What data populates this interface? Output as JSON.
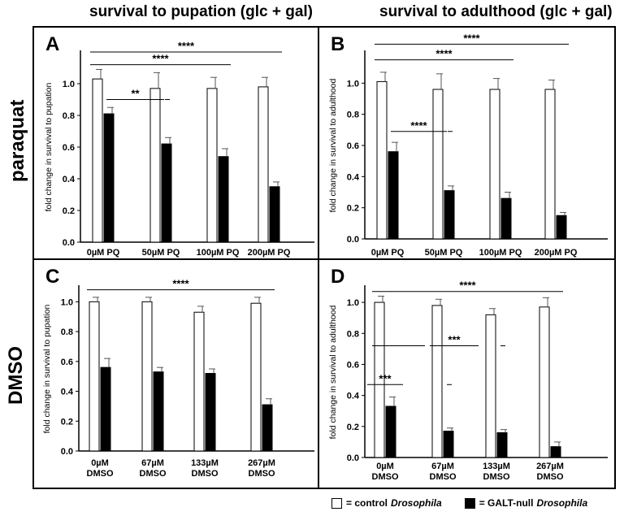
{
  "headers": {
    "col1": "survival to pupation (glc + gal)",
    "col2": "survival to adulthood (glc + gal)",
    "row1": "paraquat",
    "row2": "DMSO"
  },
  "legend": {
    "control_prefix": "= control",
    "control_name": "Drosophila",
    "null_prefix": "= GALT-null",
    "null_name": "Drosophila"
  },
  "colors": {
    "control": "#ffffff",
    "galt_null": "#000000",
    "axis": "#000000"
  },
  "chart_data": [
    {
      "type": "bar",
      "panel": "A",
      "ylabel": "fold change in survival to pupation",
      "ylim": [
        0,
        1.2
      ],
      "yticks": [
        "0.0",
        "0.2",
        "0.4",
        "0.6",
        "0.8",
        "1.0"
      ],
      "categories": [
        [
          "0µM PQ"
        ],
        [
          "50µM PQ"
        ],
        [
          "100µM PQ"
        ],
        [
          "200µM PQ"
        ]
      ],
      "series": [
        {
          "key": "control",
          "values": [
            1.03,
            0.97,
            0.97,
            0.98
          ],
          "errors": [
            0.06,
            0.1,
            0.07,
            0.06
          ]
        },
        {
          "key": "galt_null",
          "values": [
            0.81,
            0.62,
            0.54,
            0.35
          ],
          "errors": [
            0.04,
            0.04,
            0.05,
            0.03
          ]
        }
      ],
      "significance": [
        {
          "label": "****",
          "y": 1.2,
          "from": [
            0,
            "center"
          ],
          "to": [
            3,
            "center"
          ]
        },
        {
          "label": "****",
          "y": 1.12,
          "from": [
            0,
            "center"
          ],
          "to": [
            2,
            "center"
          ]
        },
        {
          "label": "**",
          "y": 0.9,
          "from": [
            0,
            "null"
          ],
          "to": [
            1,
            "null"
          ]
        }
      ],
      "dashes": [
        {
          "cat": 1,
          "y": 0.9
        }
      ]
    },
    {
      "type": "bar",
      "panel": "B",
      "ylabel": "fold change in survival to adulthood",
      "ylim": [
        0,
        1.2
      ],
      "yticks": [
        "0.0",
        "0.2",
        "0.4",
        "0.6",
        "0.8",
        "1.0"
      ],
      "categories": [
        [
          "0µM PQ"
        ],
        [
          "50µM PQ"
        ],
        [
          "100µM PQ"
        ],
        [
          "200µM PQ"
        ]
      ],
      "series": [
        {
          "key": "control",
          "values": [
            1.01,
            0.96,
            0.96,
            0.96
          ],
          "errors": [
            0.06,
            0.1,
            0.07,
            0.06
          ]
        },
        {
          "key": "galt_null",
          "values": [
            0.56,
            0.31,
            0.26,
            0.15
          ],
          "errors": [
            0.06,
            0.03,
            0.04,
            0.02
          ]
        }
      ],
      "significance": [
        {
          "label": "****",
          "y": 1.25,
          "from": [
            0,
            "center"
          ],
          "to": [
            3,
            "center"
          ]
        },
        {
          "label": "****",
          "y": 1.15,
          "from": [
            0,
            "center"
          ],
          "to": [
            2,
            "center"
          ]
        },
        {
          "label": "****",
          "y": 0.69,
          "from": [
            0,
            "null"
          ],
          "to": [
            1,
            "null"
          ]
        }
      ],
      "dashes": [
        {
          "cat": 1,
          "y": 0.69
        }
      ]
    },
    {
      "type": "bar",
      "panel": "C",
      "ylabel": "fold change in survival to pupation",
      "ylim": [
        0,
        1.1
      ],
      "yticks": [
        "0.0",
        "0.2",
        "0.4",
        "0.6",
        "0.8",
        "1.0"
      ],
      "categories": [
        [
          "0µM",
          "DMSO"
        ],
        [
          "67µM",
          "DMSO"
        ],
        [
          "133µM",
          "DMSO"
        ],
        [
          "267µM",
          "DMSO"
        ]
      ],
      "series": [
        {
          "key": "control",
          "values": [
            1.0,
            1.0,
            0.93,
            0.99
          ],
          "errors": [
            0.03,
            0.03,
            0.04,
            0.04
          ]
        },
        {
          "key": "galt_null",
          "values": [
            0.56,
            0.53,
            0.52,
            0.31
          ],
          "errors": [
            0.06,
            0.03,
            0.03,
            0.04
          ]
        }
      ],
      "significance": [
        {
          "label": "****",
          "y": 1.08,
          "from": [
            0,
            "center"
          ],
          "to": [
            3,
            "center"
          ]
        }
      ],
      "dashes": []
    },
    {
      "type": "bar",
      "panel": "D",
      "ylabel": "fold change in survival to adulthood",
      "ylim": [
        0,
        1.1
      ],
      "yticks": [
        "0.0",
        "0.2",
        "0.4",
        "0.6",
        "0.8",
        "1.0"
      ],
      "categories": [
        [
          "0µM",
          "DMSO"
        ],
        [
          "67µM",
          "DMSO"
        ],
        [
          "133µM",
          "DMSO"
        ],
        [
          "267µM",
          "DMSO"
        ]
      ],
      "series": [
        {
          "key": "control",
          "values": [
            1.0,
            0.98,
            0.92,
            0.97
          ],
          "errors": [
            0.04,
            0.04,
            0.04,
            0.06
          ]
        },
        {
          "key": "galt_null",
          "values": [
            0.33,
            0.17,
            0.16,
            0.07
          ],
          "errors": [
            0.06,
            0.02,
            0.02,
            0.03
          ]
        }
      ],
      "significance": [
        {
          "label": "****",
          "y": 1.07,
          "from": [
            0,
            "center"
          ],
          "to": [
            3,
            "center"
          ]
        },
        {
          "label": "",
          "y": 0.72,
          "from": [
            0,
            "center"
          ],
          "to": [
            1,
            "left"
          ]
        },
        {
          "label": "***",
          "y": 0.72,
          "from": [
            1,
            "center"
          ],
          "to": [
            2,
            "left"
          ]
        },
        {
          "label": "***",
          "y": 0.47,
          "from": [
            0,
            "left"
          ],
          "to": [
            0,
            "right"
          ]
        }
      ],
      "dashes": [
        {
          "cat": 1,
          "y": 0.47
        },
        {
          "cat": 2,
          "y": 0.72
        }
      ]
    }
  ]
}
